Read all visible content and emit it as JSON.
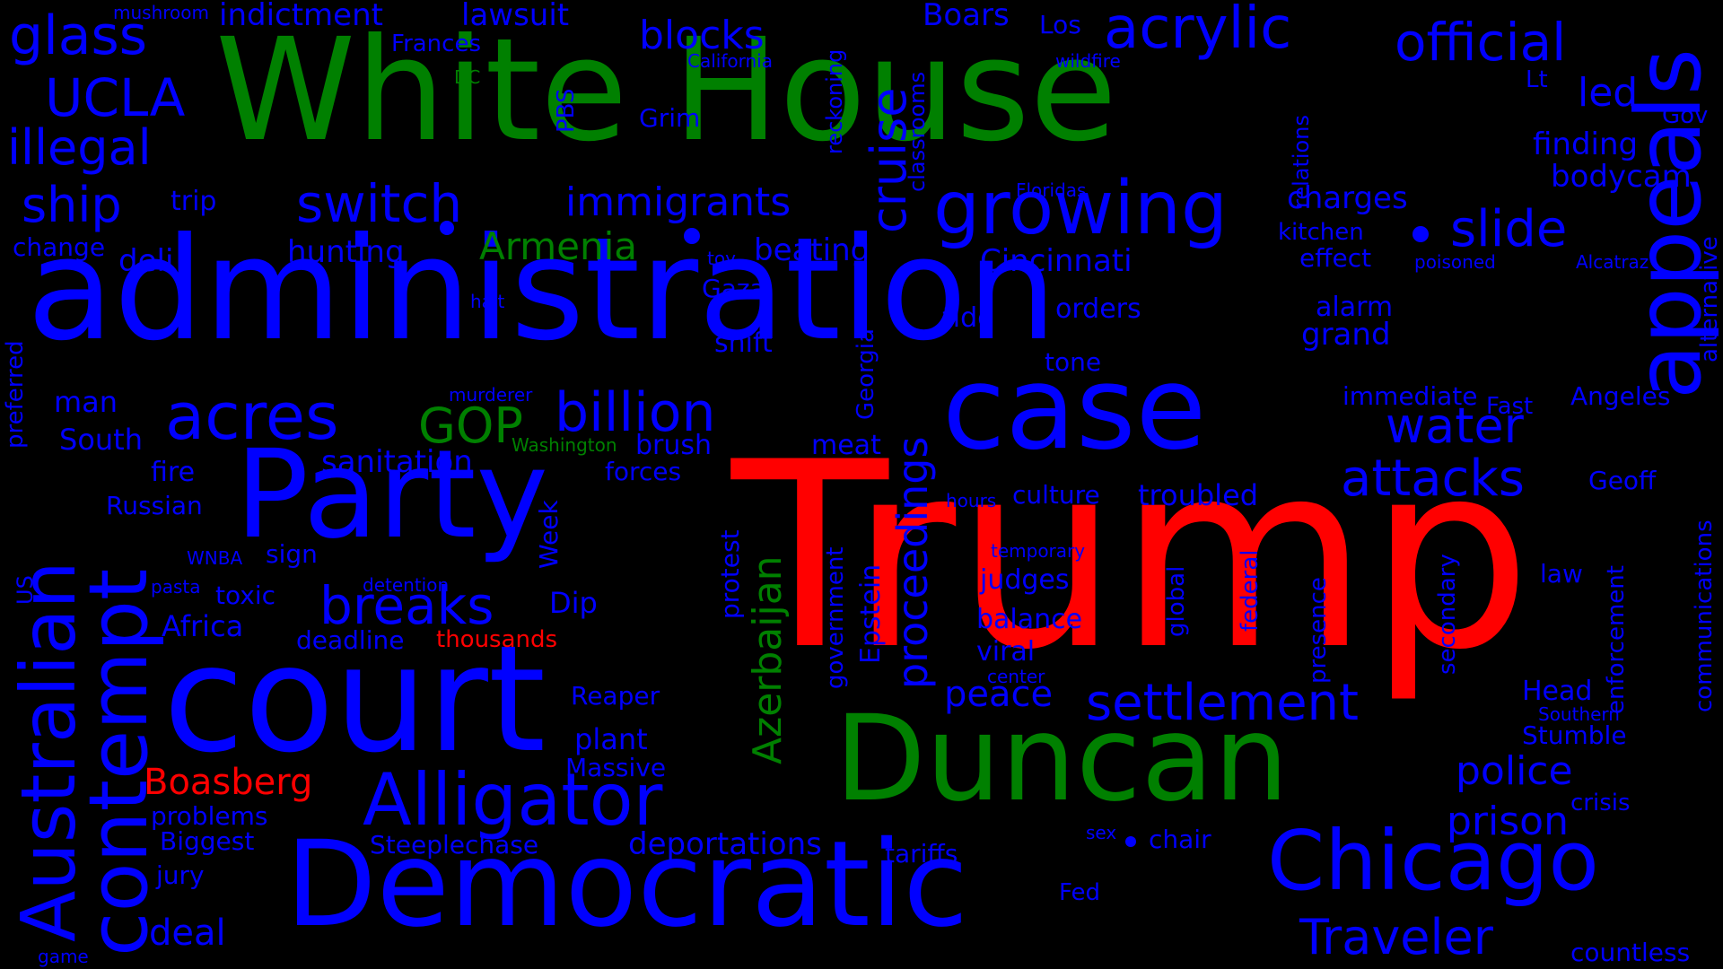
{
  "palette": {
    "blue": "#0000ff",
    "green": "#008000",
    "red": "#ff0000",
    "background": "#000000"
  },
  "words": [
    {
      "text": "Trump",
      "color": "red"
    },
    {
      "text": "administration",
      "color": "blue"
    },
    {
      "text": "White House",
      "color": "green"
    },
    {
      "text": "court",
      "color": "blue"
    },
    {
      "text": "Party",
      "color": "blue"
    },
    {
      "text": "case",
      "color": "blue"
    },
    {
      "text": "Democratic",
      "color": "blue"
    },
    {
      "text": "Duncan",
      "color": "green"
    },
    {
      "text": "Chicago",
      "color": "blue"
    },
    {
      "text": "appeals",
      "color": "blue"
    },
    {
      "text": "Australian",
      "color": "blue"
    },
    {
      "text": "contempt",
      "color": "blue"
    },
    {
      "text": "Alligator",
      "color": "blue"
    },
    {
      "text": "growing",
      "color": "blue"
    },
    {
      "text": "acrylic",
      "color": "blue"
    },
    {
      "text": "official",
      "color": "blue"
    },
    {
      "text": "acres",
      "color": "blue"
    },
    {
      "text": "settlement",
      "color": "blue"
    },
    {
      "text": "Traveler",
      "color": "blue"
    },
    {
      "text": "breaks",
      "color": "blue"
    },
    {
      "text": "billion",
      "color": "blue"
    },
    {
      "text": "attacks",
      "color": "blue"
    },
    {
      "text": "slide",
      "color": "blue"
    },
    {
      "text": "switch",
      "color": "blue"
    },
    {
      "text": "glass",
      "color": "blue"
    },
    {
      "text": "UCLA",
      "color": "blue"
    },
    {
      "text": "illegal",
      "color": "blue"
    },
    {
      "text": "cruise",
      "color": "blue"
    },
    {
      "text": "water",
      "color": "blue"
    },
    {
      "text": "immigrants",
      "color": "blue"
    },
    {
      "text": "police",
      "color": "blue"
    },
    {
      "text": "prison",
      "color": "blue"
    },
    {
      "text": "ship",
      "color": "blue"
    },
    {
      "text": "blocks",
      "color": "blue"
    },
    {
      "text": "proceedings",
      "color": "blue"
    },
    {
      "text": "Azerbaijan",
      "color": "green"
    },
    {
      "text": "GOP",
      "color": "green"
    },
    {
      "text": "Armenia",
      "color": "green"
    },
    {
      "text": "Boasberg",
      "color": "red"
    },
    {
      "text": "peace",
      "color": "blue"
    },
    {
      "text": "deal",
      "color": "blue"
    },
    {
      "text": "sanitation",
      "color": "blue"
    },
    {
      "text": "deportations",
      "color": "blue"
    },
    {
      "text": "Cincinnati",
      "color": "blue"
    },
    {
      "text": "Boars",
      "color": "blue"
    },
    {
      "text": "led",
      "color": "blue"
    },
    {
      "text": "finding",
      "color": "blue"
    },
    {
      "text": "bodycam",
      "color": "blue"
    },
    {
      "text": "charges",
      "color": "blue"
    },
    {
      "text": "lawsuit",
      "color": "blue"
    },
    {
      "text": "indictment",
      "color": "blue"
    },
    {
      "text": "Frances",
      "color": "blue"
    },
    {
      "text": "Los",
      "color": "blue"
    },
    {
      "text": "beating",
      "color": "blue"
    },
    {
      "text": "hunting",
      "color": "blue"
    },
    {
      "text": "deli",
      "color": "blue"
    },
    {
      "text": "change",
      "color": "blue"
    },
    {
      "text": "trip",
      "color": "blue"
    },
    {
      "text": "Grim",
      "color": "blue"
    },
    {
      "text": "PBS",
      "color": "blue"
    },
    {
      "text": "Gaza",
      "color": "blue"
    },
    {
      "text": "shift",
      "color": "blue"
    },
    {
      "text": "tide",
      "color": "blue"
    },
    {
      "text": "orders",
      "color": "blue"
    },
    {
      "text": "alarm",
      "color": "blue"
    },
    {
      "text": "grand",
      "color": "blue"
    },
    {
      "text": "tone",
      "color": "blue"
    },
    {
      "text": "immediate",
      "color": "blue"
    },
    {
      "text": "Fast",
      "color": "blue"
    },
    {
      "text": "Angeles",
      "color": "blue"
    },
    {
      "text": "man",
      "color": "blue"
    },
    {
      "text": "South",
      "color": "blue"
    },
    {
      "text": "fire",
      "color": "blue"
    },
    {
      "text": "Russian",
      "color": "blue"
    },
    {
      "text": "sign",
      "color": "blue"
    },
    {
      "text": "toxic",
      "color": "blue"
    },
    {
      "text": "Africa",
      "color": "blue"
    },
    {
      "text": "deadline",
      "color": "blue"
    },
    {
      "text": "thousands",
      "color": "red"
    },
    {
      "text": "Dip",
      "color": "blue"
    },
    {
      "text": "meat",
      "color": "blue"
    },
    {
      "text": "brush",
      "color": "blue"
    },
    {
      "text": "forces",
      "color": "blue"
    },
    {
      "text": "culture",
      "color": "blue"
    },
    {
      "text": "troubled",
      "color": "blue"
    },
    {
      "text": "judges",
      "color": "blue"
    },
    {
      "text": "balance",
      "color": "blue"
    },
    {
      "text": "viral",
      "color": "blue"
    },
    {
      "text": "law",
      "color": "blue"
    },
    {
      "text": "Head",
      "color": "blue"
    },
    {
      "text": "Stumble",
      "color": "blue"
    },
    {
      "text": "crisis",
      "color": "blue"
    },
    {
      "text": "chair",
      "color": "blue"
    },
    {
      "text": "tariffs",
      "color": "blue"
    },
    {
      "text": "Fed",
      "color": "blue"
    },
    {
      "text": "Reaper",
      "color": "blue"
    },
    {
      "text": "plant",
      "color": "blue"
    },
    {
      "text": "Massive",
      "color": "blue"
    },
    {
      "text": "problems",
      "color": "blue"
    },
    {
      "text": "Biggest",
      "color": "blue"
    },
    {
      "text": "jury",
      "color": "blue"
    },
    {
      "text": "Steeplechase",
      "color": "blue"
    },
    {
      "text": "countless",
      "color": "blue"
    },
    {
      "text": "kitchen",
      "color": "blue"
    },
    {
      "text": "effect",
      "color": "blue"
    },
    {
      "text": "Geoff",
      "color": "blue"
    },
    {
      "text": "Lt",
      "color": "blue"
    },
    {
      "text": "Gov",
      "color": "blue"
    },
    {
      "text": "Epstein",
      "color": "blue"
    },
    {
      "text": "Georgia",
      "color": "blue"
    },
    {
      "text": "protest",
      "color": "blue"
    },
    {
      "text": "Week",
      "color": "blue"
    },
    {
      "text": "government",
      "color": "blue"
    },
    {
      "text": "global",
      "color": "blue"
    },
    {
      "text": "federal",
      "color": "blue"
    },
    {
      "text": "presence",
      "color": "blue"
    },
    {
      "text": "secondary",
      "color": "blue"
    },
    {
      "text": "enforcement",
      "color": "blue"
    },
    {
      "text": "communications",
      "color": "blue"
    },
    {
      "text": "alternative",
      "color": "blue"
    },
    {
      "text": "relations",
      "color": "blue"
    },
    {
      "text": "reckoning",
      "color": "blue"
    },
    {
      "text": "classrooms",
      "color": "blue"
    },
    {
      "text": "preferred",
      "color": "blue"
    },
    {
      "text": "US",
      "color": "blue"
    },
    {
      "text": "mushroom",
      "color": "blue"
    },
    {
      "text": "DC",
      "color": "green"
    },
    {
      "text": "California",
      "color": "blue"
    },
    {
      "text": "wildfire",
      "color": "blue"
    },
    {
      "text": "Floridas",
      "color": "blue"
    },
    {
      "text": "toy",
      "color": "blue"
    },
    {
      "text": "halt",
      "color": "blue"
    },
    {
      "text": "poisoned",
      "color": "blue"
    },
    {
      "text": "Alcatraz",
      "color": "blue"
    },
    {
      "text": "murderer",
      "color": "blue"
    },
    {
      "text": "Washington",
      "color": "green"
    },
    {
      "text": "WNBA",
      "color": "blue"
    },
    {
      "text": "pasta",
      "color": "blue"
    },
    {
      "text": "detention",
      "color": "blue"
    },
    {
      "text": "hours",
      "color": "blue"
    },
    {
      "text": "temporary",
      "color": "blue"
    },
    {
      "text": "center",
      "color": "blue"
    },
    {
      "text": "Southern",
      "color": "blue"
    },
    {
      "text": "sex",
      "color": "blue"
    },
    {
      "text": "game",
      "color": "blue"
    }
  ]
}
